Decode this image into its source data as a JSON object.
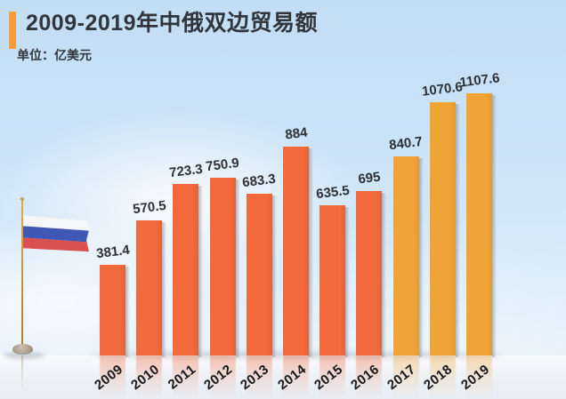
{
  "header": {
    "title": "2009-2019年中俄双边贸易额",
    "unit_label": "单位：亿美元",
    "accent_color": "#f59d3b",
    "title_color": "#31363c"
  },
  "chart_data": {
    "type": "bar",
    "title": "2009-2019年中俄双边贸易额",
    "unit": "亿美元",
    "categories": [
      "2009",
      "2010",
      "2011",
      "2012",
      "2013",
      "2014",
      "2015",
      "2016",
      "2017",
      "2018",
      "2019"
    ],
    "values": [
      381.4,
      570.5,
      723.3,
      750.9,
      683.3,
      884,
      635.5,
      695,
      840.7,
      1070.6,
      1107.6
    ],
    "bar_colors": [
      "#f2693c",
      "#f2693c",
      "#f2693c",
      "#f2693c",
      "#f2693c",
      "#f2693c",
      "#f2693c",
      "#f2693c",
      "#f0a437",
      "#f0a437",
      "#f0a437"
    ],
    "value_label_color": "#2d3136",
    "category_label_color": "#17181a",
    "ylim": [
      0,
      1200
    ],
    "grid": false,
    "legend": false,
    "value_labels_shown": true,
    "background_color": "#cce4f8"
  },
  "decor": {
    "flag": "russia-flag",
    "flag_stripe_colors": [
      "#f5f6f7",
      "#3f57b5",
      "#d8504f"
    ],
    "pole_color": "#c98b2e",
    "floor_color": "#eef2f7"
  }
}
